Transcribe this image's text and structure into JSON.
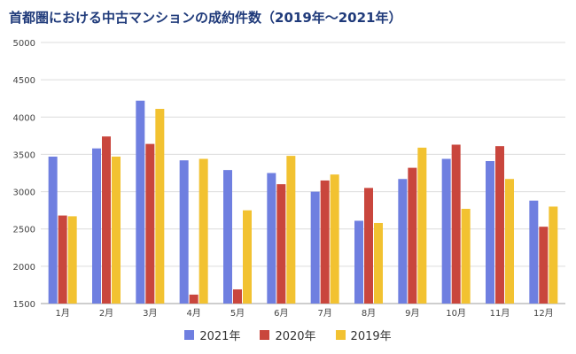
{
  "chart_data": {
    "type": "bar",
    "title": "首都圏における中古マンションの成約件数（2019年～2021年）",
    "categories": [
      "1月",
      "2月",
      "3月",
      "4月",
      "5月",
      "6月",
      "7月",
      "8月",
      "9月",
      "10月",
      "11月",
      "12月"
    ],
    "series": [
      {
        "name": "2021年",
        "color": "#6f7fe0",
        "values": [
          3470,
          3580,
          4220,
          3420,
          3290,
          3250,
          3000,
          2610,
          3170,
          3440,
          3410,
          2880
        ]
      },
      {
        "name": "2020年",
        "color": "#c9463d",
        "values": [
          2680,
          3740,
          3640,
          1620,
          1690,
          3100,
          3150,
          3050,
          3320,
          3630,
          3610,
          2530
        ]
      },
      {
        "name": "2019年",
        "color": "#f2c231",
        "values": [
          2670,
          3470,
          4110,
          3440,
          2750,
          3480,
          3230,
          2580,
          3590,
          2770,
          3170,
          2800
        ]
      }
    ],
    "ylim": [
      1500,
      5000
    ],
    "yticks": [
      "1500",
      "2000",
      "2500",
      "3000",
      "3500",
      "4000",
      "4500",
      "5000"
    ],
    "grid": true,
    "legend_position": "bottom"
  }
}
